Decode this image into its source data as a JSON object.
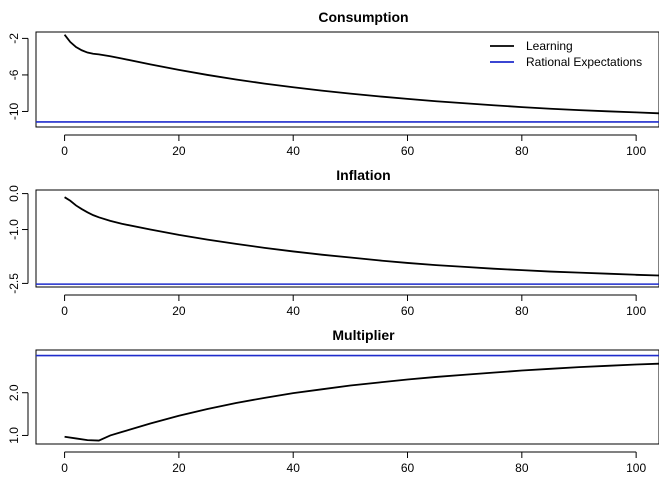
{
  "chart_data": [
    {
      "type": "line",
      "title": "Consumption",
      "xlabel": "",
      "ylabel": "",
      "xlim": [
        -5,
        104
      ],
      "ylim": [
        -11.7,
        -1.3
      ],
      "xticks": [
        0,
        20,
        40,
        60,
        80,
        100
      ],
      "yticks": [
        -2,
        -6,
        -10
      ],
      "grid": false,
      "legend": {
        "position": "top-right",
        "entries": [
          {
            "label": "Learning",
            "color": "#000000"
          },
          {
            "label": "Rational Expectations",
            "color": "#1f2ccc"
          }
        ]
      },
      "series": [
        {
          "name": "Learning",
          "color": "#000000",
          "x": [
            0,
            1,
            2,
            3,
            4,
            5,
            6,
            8,
            10,
            15,
            20,
            25,
            30,
            35,
            40,
            45,
            50,
            55,
            60,
            65,
            70,
            75,
            80,
            85,
            90,
            95,
            100,
            104
          ],
          "y": [
            -1.6,
            -2.4,
            -2.95,
            -3.3,
            -3.55,
            -3.68,
            -3.75,
            -3.95,
            -4.2,
            -4.85,
            -5.45,
            -6.0,
            -6.5,
            -6.95,
            -7.35,
            -7.72,
            -8.05,
            -8.35,
            -8.62,
            -8.88,
            -9.1,
            -9.32,
            -9.52,
            -9.7,
            -9.85,
            -9.98,
            -10.1,
            -10.2
          ]
        },
        {
          "name": "Rational Expectations",
          "color": "#1f2ccc",
          "x": [
            -5,
            104
          ],
          "y": [
            -11.15,
            -11.15
          ]
        }
      ]
    },
    {
      "type": "line",
      "title": "Inflation",
      "xlabel": "",
      "ylabel": "",
      "xlim": [
        -5,
        104
      ],
      "ylim": [
        -2.6,
        0.1
      ],
      "xticks": [
        0,
        20,
        40,
        60,
        80,
        100
      ],
      "yticks": [
        0.0,
        -1.0,
        -2.5
      ],
      "ytick_labels": [
        "0.0",
        "-1.0",
        "-2.5"
      ],
      "grid": false,
      "series": [
        {
          "name": "Learning",
          "color": "#000000",
          "x": [
            0,
            1,
            2,
            3,
            4,
            5,
            6,
            8,
            10,
            15,
            20,
            25,
            30,
            35,
            40,
            45,
            50,
            55,
            60,
            65,
            70,
            75,
            80,
            85,
            90,
            95,
            100,
            104
          ],
          "y": [
            -0.1,
            -0.2,
            -0.33,
            -0.43,
            -0.52,
            -0.6,
            -0.66,
            -0.76,
            -0.84,
            -1.0,
            -1.15,
            -1.28,
            -1.4,
            -1.51,
            -1.61,
            -1.7,
            -1.78,
            -1.86,
            -1.93,
            -1.99,
            -2.04,
            -2.09,
            -2.13,
            -2.17,
            -2.2,
            -2.23,
            -2.26,
            -2.28
          ]
        },
        {
          "name": "Rational Expectations",
          "color": "#1f2ccc",
          "x": [
            -5,
            104
          ],
          "y": [
            -2.52,
            -2.52
          ]
        }
      ]
    },
    {
      "type": "line",
      "title": "Multiplier",
      "xlabel": "",
      "ylabel": "",
      "xlim": [
        -5,
        104
      ],
      "ylim": [
        0.8,
        3.0
      ],
      "xticks": [
        0,
        20,
        40,
        60,
        80,
        100
      ],
      "yticks": [
        1.0,
        2.0
      ],
      "ytick_labels": [
        "1.0",
        "2.0"
      ],
      "grid": false,
      "series": [
        {
          "name": "Learning",
          "color": "#000000",
          "x": [
            0,
            2,
            4,
            6,
            8,
            10,
            15,
            20,
            25,
            30,
            35,
            40,
            45,
            50,
            55,
            60,
            65,
            70,
            75,
            80,
            85,
            90,
            95,
            100,
            104
          ],
          "y": [
            0.97,
            0.93,
            0.89,
            0.88,
            1.0,
            1.08,
            1.28,
            1.46,
            1.62,
            1.76,
            1.88,
            1.99,
            2.08,
            2.17,
            2.24,
            2.31,
            2.37,
            2.42,
            2.47,
            2.52,
            2.56,
            2.6,
            2.63,
            2.66,
            2.68
          ]
        },
        {
          "name": "Rational Expectations",
          "color": "#1f2ccc",
          "x": [
            -5,
            104
          ],
          "y": [
            2.87,
            2.87
          ]
        }
      ]
    }
  ]
}
